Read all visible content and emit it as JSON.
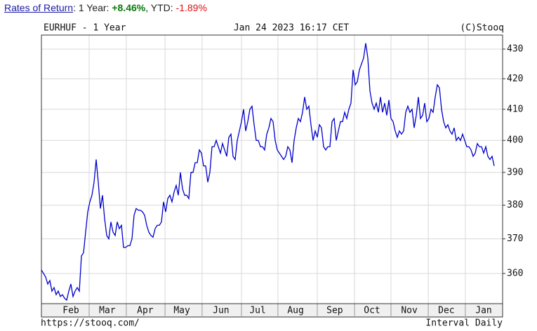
{
  "header": {
    "link": "Rates of Return",
    "sep1": ": 1 Year: ",
    "one_year": "+8.46%",
    "sep2": ", YTD: ",
    "ytd": "-1.89%"
  },
  "chart_data": {
    "type": "line",
    "title": "EURHUF - 1 Year",
    "timestamp": "Jan 24 2023 16:17 CET",
    "copyright": "(C)Stooq",
    "footer_left": "https://stooq.com/",
    "footer_right": "Interval Daily",
    "log_scale": true,
    "grid": true,
    "color": "#0000cc",
    "ylim": [
      351.5,
      434.8
    ],
    "yticks": [
      360,
      370,
      380,
      390,
      400,
      410,
      420,
      430
    ],
    "xlim": [
      0,
      219
    ],
    "xgrid": [
      22.67,
      40.3,
      58.7,
      76.3,
      95,
      112.3,
      131,
      148.7,
      166,
      183.7,
      201.3
    ],
    "xticks": [
      {
        "value": 14,
        "label": "Feb"
      },
      {
        "value": 31.3,
        "label": "Mar"
      },
      {
        "value": 49.3,
        "label": "Apr"
      },
      {
        "value": 66.7,
        "label": "May"
      },
      {
        "value": 85.3,
        "label": "Jun"
      },
      {
        "value": 102.7,
        "label": "Jul"
      },
      {
        "value": 120.7,
        "label": "Aug"
      },
      {
        "value": 139.3,
        "label": "Sep"
      },
      {
        "value": 157,
        "label": "Oct"
      },
      {
        "value": 174.7,
        "label": "Nov"
      },
      {
        "value": 192.3,
        "label": "Dec"
      },
      {
        "value": 210,
        "label": "Jan"
      }
    ],
    "values": [
      361,
      360,
      359,
      357,
      358,
      355,
      356,
      354,
      355,
      353.5,
      354,
      353,
      352.5,
      355,
      357,
      353.5,
      355,
      356,
      355,
      365,
      366,
      372,
      378,
      381,
      383,
      387,
      394,
      387,
      379,
      383,
      376,
      371,
      370,
      375,
      372,
      371,
      375,
      373,
      374,
      367.5,
      367.5,
      368,
      368,
      370,
      377,
      379,
      378.5,
      378.5,
      378,
      377,
      374,
      372,
      371,
      370.5,
      373,
      374,
      374,
      375,
      381,
      378,
      382,
      383,
      381,
      384,
      386,
      383,
      390,
      385,
      383,
      383,
      382,
      390,
      390,
      393,
      393,
      397,
      396,
      392,
      392,
      387,
      390,
      398,
      398,
      400,
      398,
      396,
      399,
      397,
      395,
      401,
      402,
      395,
      394,
      400,
      403,
      406,
      410,
      403,
      406,
      410,
      411,
      405,
      400,
      400,
      398,
      398,
      397,
      402,
      404,
      407,
      406,
      400,
      397,
      396,
      395,
      394,
      395,
      398,
      397,
      393,
      400,
      404,
      407,
      406,
      409,
      414,
      410,
      411,
      405,
      400,
      403,
      401,
      405,
      404,
      398,
      397,
      398,
      398,
      406,
      407,
      400,
      403,
      406,
      406,
      409,
      407,
      410,
      412,
      423,
      418,
      419,
      423,
      425,
      427,
      432,
      427,
      416,
      412,
      410,
      412,
      409,
      414,
      409,
      412,
      408,
      413,
      407,
      406,
      403,
      401,
      403,
      402,
      403,
      409,
      411,
      409,
      410,
      404,
      408,
      414,
      407,
      408,
      412,
      406,
      407,
      410,
      409,
      414,
      418,
      417,
      410,
      406,
      404,
      405,
      403,
      402,
      404,
      400,
      401,
      400,
      402,
      400,
      398,
      398,
      397,
      395,
      396,
      399,
      398,
      398,
      396,
      398,
      395,
      394,
      395,
      392
    ]
  }
}
